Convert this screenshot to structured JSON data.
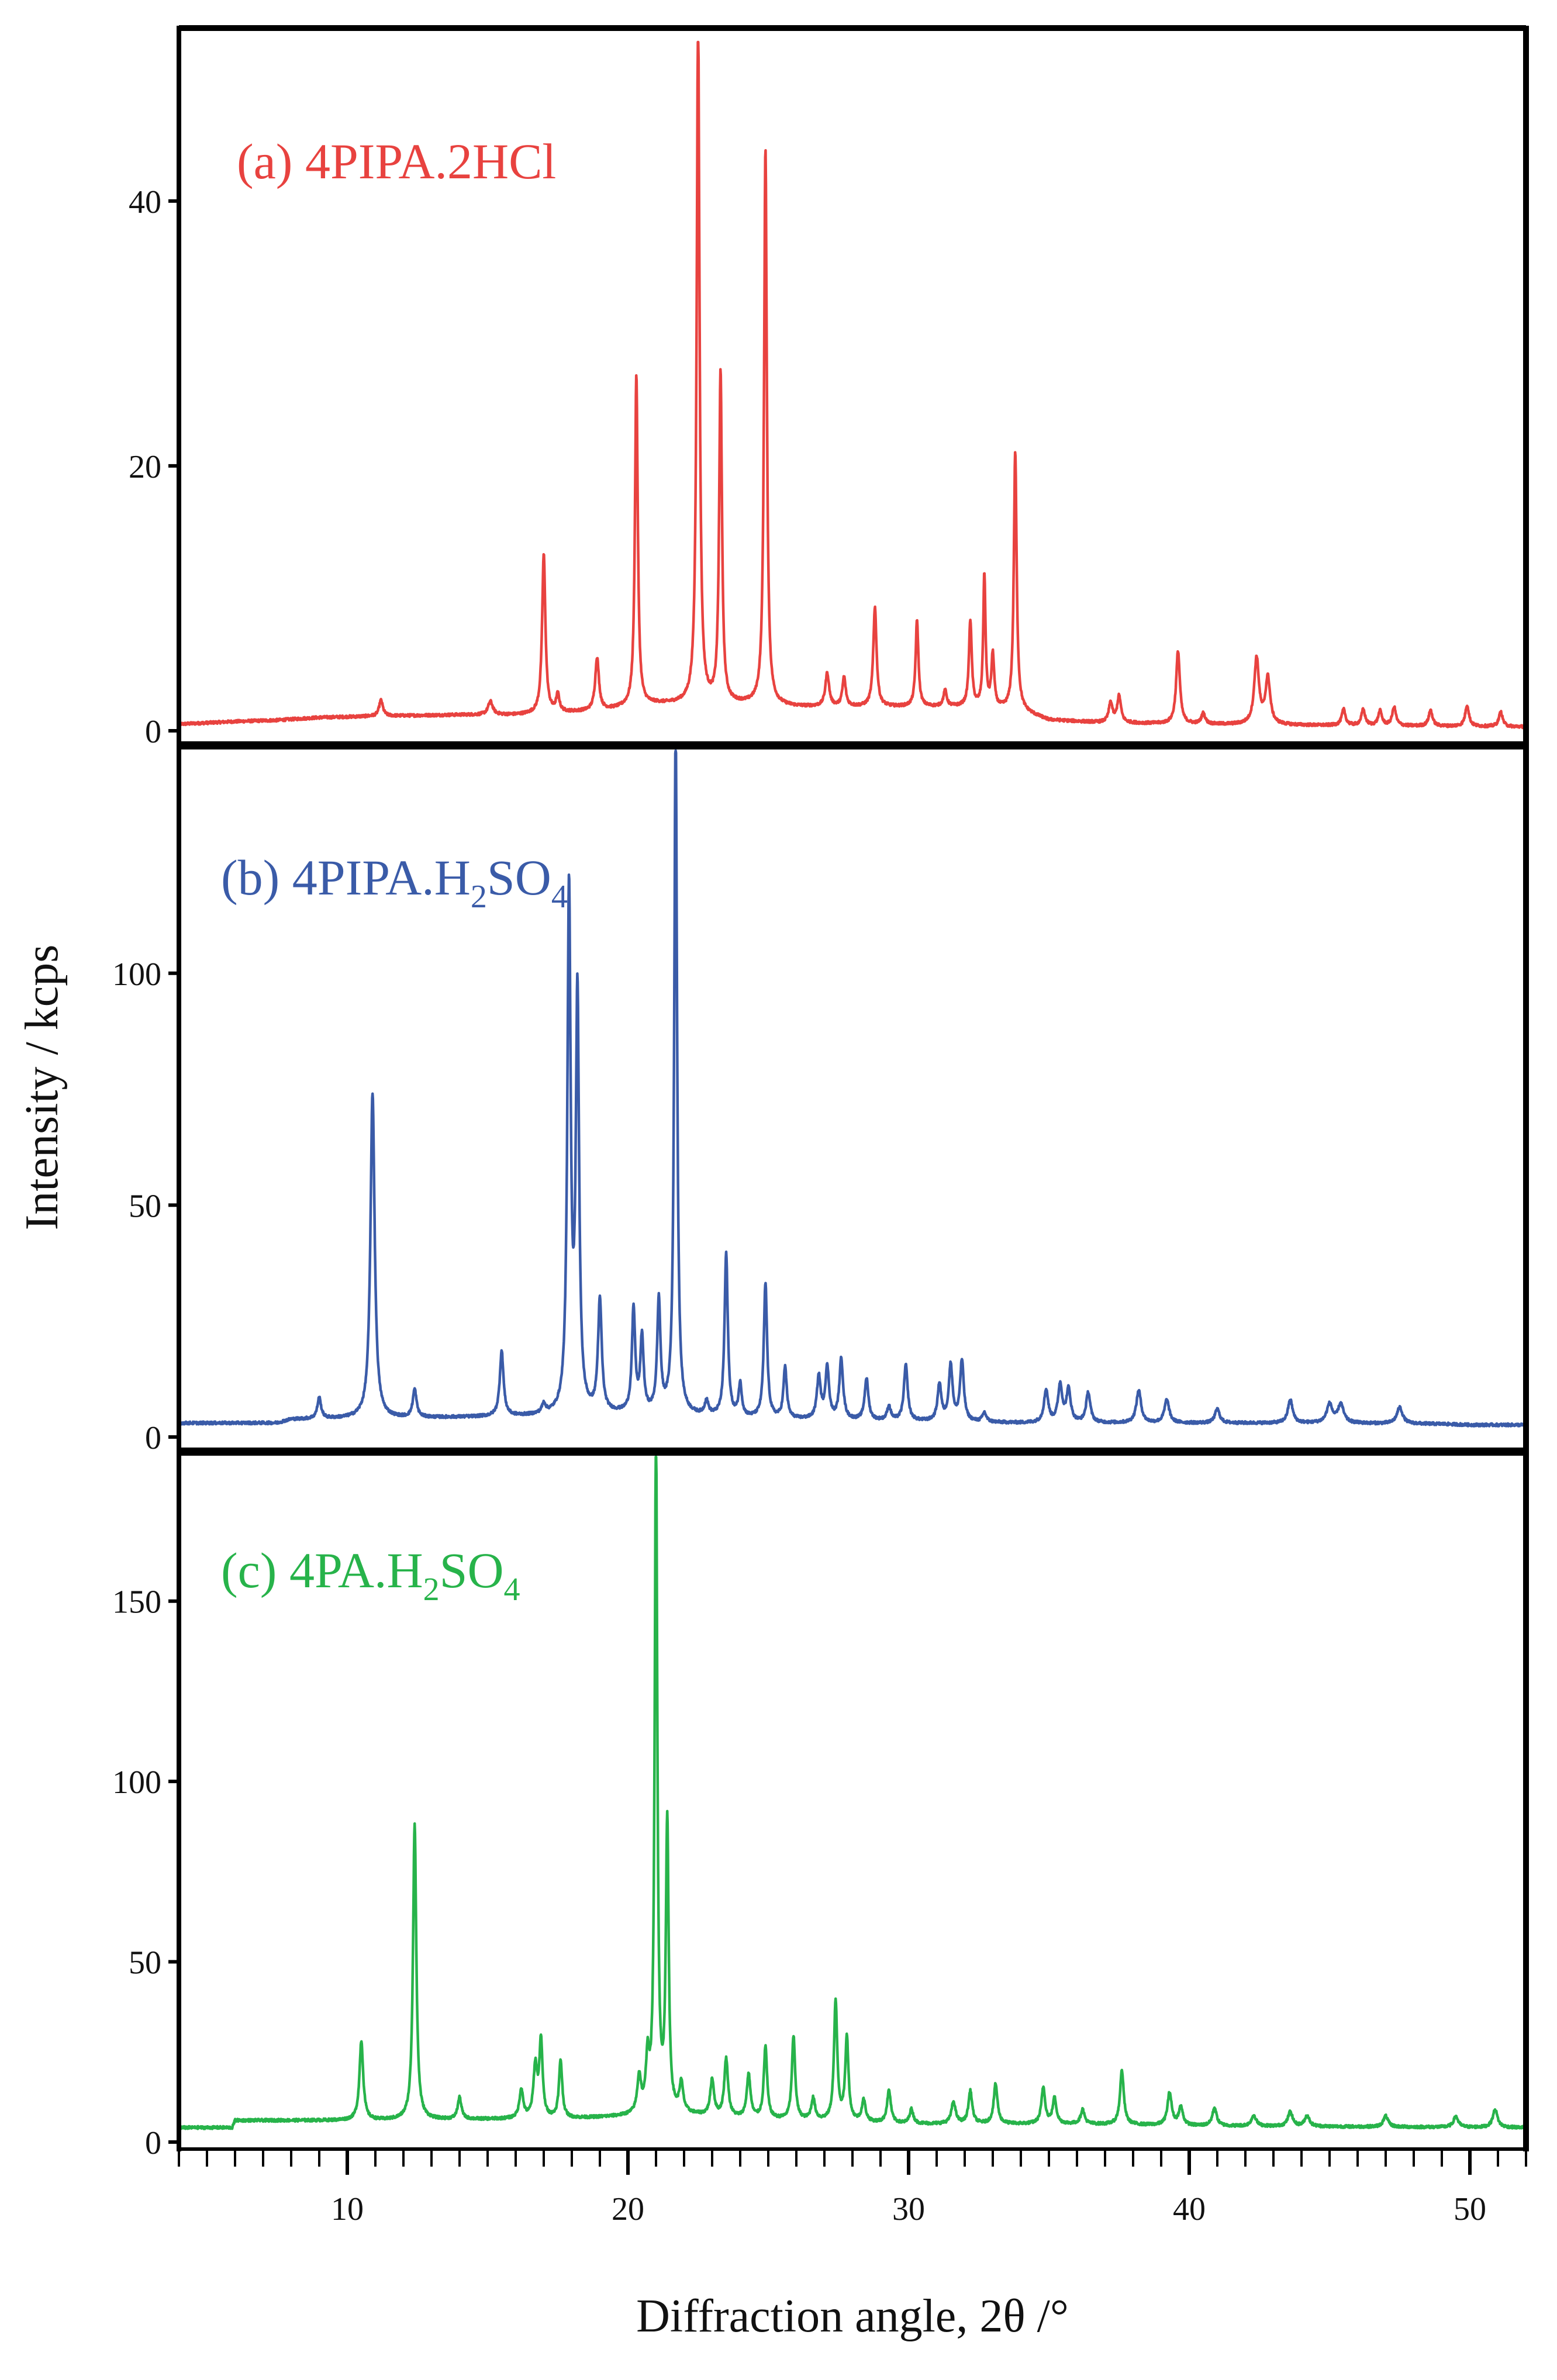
{
  "chart_data": {
    "type": "line",
    "title": "",
    "xlabel": "Diffraction angle, 2θ /°",
    "ylabel": "Intensity / kcps",
    "xlim": [
      4,
      52
    ],
    "x_ticks": [
      10,
      20,
      30,
      40,
      50
    ],
    "x_tick_labels": [
      "10",
      "20",
      "30",
      "40",
      "50"
    ],
    "panels": [
      {
        "name": "(a) 4PIPA.2HCl",
        "label_prefix": "(a) 4PIPA.2HCl",
        "color": "#e8423f",
        "ylim": [
          0,
          52
        ],
        "y_ticks": [
          0,
          20,
          40
        ],
        "y_tick_labels": [
          "0",
          "20",
          "40"
        ],
        "baseline": [
          [
            4,
            0.5
          ],
          [
            5,
            0.6
          ],
          [
            6,
            0.7
          ],
          [
            7.5,
            0.8
          ],
          [
            9,
            1
          ],
          [
            11,
            1.1
          ],
          [
            14,
            1.2
          ],
          [
            16,
            1.2
          ],
          [
            19,
            1.5
          ],
          [
            21,
            2
          ],
          [
            24,
            2
          ],
          [
            26,
            1.8
          ],
          [
            28,
            1.8
          ],
          [
            32,
            1.8
          ],
          [
            34,
            1.5
          ],
          [
            35,
            0.8
          ],
          [
            37,
            0.6
          ],
          [
            40,
            0.5
          ],
          [
            45,
            0.4
          ],
          [
            52,
            0.3
          ]
        ],
        "peaks": [
          [
            11.2,
            1.2,
            0.08
          ],
          [
            15.1,
            1.0,
            0.1
          ],
          [
            17.0,
            12,
            0.07
          ],
          [
            17.5,
            1.3,
            0.07
          ],
          [
            18.9,
            4,
            0.08
          ],
          [
            20.3,
            25,
            0.06
          ],
          [
            22.5,
            52,
            0.06
          ],
          [
            23.3,
            25,
            0.06
          ],
          [
            24.9,
            42,
            0.06
          ],
          [
            27.1,
            2.5,
            0.08
          ],
          [
            27.7,
            2.2,
            0.07
          ],
          [
            28.8,
            7.5,
            0.07
          ],
          [
            30.3,
            6.5,
            0.06
          ],
          [
            31.3,
            1.2,
            0.07
          ],
          [
            32.2,
            6.5,
            0.06
          ],
          [
            32.7,
            10,
            0.05
          ],
          [
            33.0,
            4,
            0.06
          ],
          [
            33.8,
            19.5,
            0.06
          ],
          [
            37.2,
            1.5,
            0.08
          ],
          [
            37.5,
            2,
            0.08
          ],
          [
            39.6,
            5.5,
            0.08
          ],
          [
            40.5,
            0.8,
            0.08
          ],
          [
            42.4,
            5,
            0.1
          ],
          [
            42.8,
            3.5,
            0.1
          ],
          [
            45.5,
            1.2,
            0.08
          ],
          [
            46.2,
            1.2,
            0.08
          ],
          [
            46.8,
            1.1,
            0.08
          ],
          [
            47.3,
            1.4,
            0.08
          ],
          [
            48.6,
            1.2,
            0.08
          ],
          [
            49.9,
            1.6,
            0.08
          ],
          [
            51.1,
            1.1,
            0.08
          ]
        ]
      },
      {
        "name": "(b) 4PIPA.H2SO4",
        "label_prefix": "(b) 4PIPA.H",
        "label_sub1": "2",
        "label_mid": "SO",
        "label_sub2": "4",
        "color": "#3a5ba8",
        "ylim": [
          0,
          148
        ],
        "y_ticks": [
          0,
          50,
          100
        ],
        "y_tick_labels": [
          "0",
          "50",
          "100"
        ],
        "baseline": [
          [
            4,
            3
          ],
          [
            7.5,
            3
          ],
          [
            8,
            3.8
          ],
          [
            10.5,
            4
          ],
          [
            11.5,
            4
          ],
          [
            17,
            4.5
          ],
          [
            20,
            5
          ],
          [
            22,
            4.5
          ],
          [
            24,
            4
          ],
          [
            28,
            3.5
          ],
          [
            32,
            3.2
          ],
          [
            34,
            3
          ],
          [
            45,
            3
          ],
          [
            49,
            2.8
          ],
          [
            50,
            2.6
          ],
          [
            52,
            2.6
          ]
        ],
        "peaks": [
          [
            9.0,
            4.5,
            0.08
          ],
          [
            10.9,
            70,
            0.09
          ],
          [
            12.4,
            6,
            0.08
          ],
          [
            15.5,
            14,
            0.08
          ],
          [
            17.0,
            2,
            0.08
          ],
          [
            17.9,
            112,
            0.07
          ],
          [
            18.2,
            89,
            0.07
          ],
          [
            19.0,
            24,
            0.08
          ],
          [
            20.2,
            22,
            0.07
          ],
          [
            20.5,
            16,
            0.07
          ],
          [
            21.1,
            24,
            0.07
          ],
          [
            21.7,
            148,
            0.06
          ],
          [
            22.8,
            3,
            0.08
          ],
          [
            23.5,
            35,
            0.07
          ],
          [
            24.0,
            7,
            0.07
          ],
          [
            24.9,
            29,
            0.07
          ],
          [
            25.6,
            11,
            0.07
          ],
          [
            26.8,
            9,
            0.08
          ],
          [
            27.1,
            11,
            0.08
          ],
          [
            27.6,
            13,
            0.08
          ],
          [
            28.5,
            9,
            0.08
          ],
          [
            29.3,
            3,
            0.08
          ],
          [
            29.9,
            12,
            0.08
          ],
          [
            31.1,
            8,
            0.08
          ],
          [
            31.5,
            12,
            0.08
          ],
          [
            31.9,
            13,
            0.08
          ],
          [
            32.7,
            2,
            0.08
          ],
          [
            34.9,
            7,
            0.09
          ],
          [
            35.4,
            8,
            0.09
          ],
          [
            35.7,
            7,
            0.09
          ],
          [
            36.4,
            6.5,
            0.09
          ],
          [
            38.2,
            7,
            0.1
          ],
          [
            39.2,
            5,
            0.1
          ],
          [
            41.0,
            3,
            0.1
          ],
          [
            43.6,
            5,
            0.1
          ],
          [
            45.0,
            4,
            0.12
          ],
          [
            45.4,
            4,
            0.12
          ],
          [
            47.5,
            3.5,
            0.12
          ]
        ]
      },
      {
        "name": "(c) 4PA.H2SO4",
        "label_prefix": "(c) 4PA.H",
        "label_sub1": "2",
        "label_mid": "SO",
        "label_sub2": "4",
        "color": "#27b34a",
        "ylim": [
          0,
          190
        ],
        "y_ticks": [
          0,
          50,
          100,
          150
        ],
        "y_tick_labels": [
          "0",
          "50",
          "100",
          "150"
        ],
        "baseline": [
          [
            4,
            4
          ],
          [
            5.9,
            4
          ],
          [
            6,
            6
          ],
          [
            10,
            6
          ],
          [
            11,
            6
          ],
          [
            15,
            6.3
          ],
          [
            18,
            6.5
          ],
          [
            20,
            7
          ],
          [
            22,
            7.5
          ],
          [
            24,
            6.5
          ],
          [
            26,
            6
          ],
          [
            28,
            5.5
          ],
          [
            30,
            5
          ],
          [
            36,
            5
          ],
          [
            40,
            4.5
          ],
          [
            52,
            4
          ]
        ],
        "peaks": [
          [
            10.5,
            22,
            0.08
          ],
          [
            12.4,
            82,
            0.07
          ],
          [
            14.0,
            6,
            0.08
          ],
          [
            16.2,
            8,
            0.08
          ],
          [
            16.7,
            14,
            0.08
          ],
          [
            16.9,
            21,
            0.07
          ],
          [
            17.6,
            16,
            0.07
          ],
          [
            20.4,
            10,
            0.08
          ],
          [
            20.7,
            14,
            0.07
          ],
          [
            21.0,
            190,
            0.055
          ],
          [
            21.4,
            80,
            0.06
          ],
          [
            21.9,
            8,
            0.08
          ],
          [
            23.0,
            10,
            0.08
          ],
          [
            23.5,
            16,
            0.08
          ],
          [
            24.3,
            12,
            0.08
          ],
          [
            24.9,
            20,
            0.07
          ],
          [
            25.9,
            23,
            0.07
          ],
          [
            26.6,
            6,
            0.08
          ],
          [
            27.4,
            33,
            0.07
          ],
          [
            27.8,
            23,
            0.07
          ],
          [
            28.4,
            6,
            0.08
          ],
          [
            29.3,
            9,
            0.08
          ],
          [
            30.1,
            4,
            0.08
          ],
          [
            31.6,
            6,
            0.09
          ],
          [
            32.2,
            9,
            0.08
          ],
          [
            33.1,
            11,
            0.08
          ],
          [
            34.8,
            10,
            0.08
          ],
          [
            35.2,
            7,
            0.08
          ],
          [
            36.2,
            4,
            0.08
          ],
          [
            37.6,
            15,
            0.08
          ],
          [
            39.3,
            9,
            0.09
          ],
          [
            39.7,
            5,
            0.09
          ],
          [
            40.9,
            5,
            0.09
          ],
          [
            42.3,
            3,
            0.1
          ],
          [
            43.6,
            4,
            0.1
          ],
          [
            44.2,
            3,
            0.1
          ],
          [
            47.0,
            3,
            0.1
          ],
          [
            49.5,
            3,
            0.1
          ],
          [
            50.9,
            5,
            0.1
          ]
        ]
      }
    ]
  }
}
